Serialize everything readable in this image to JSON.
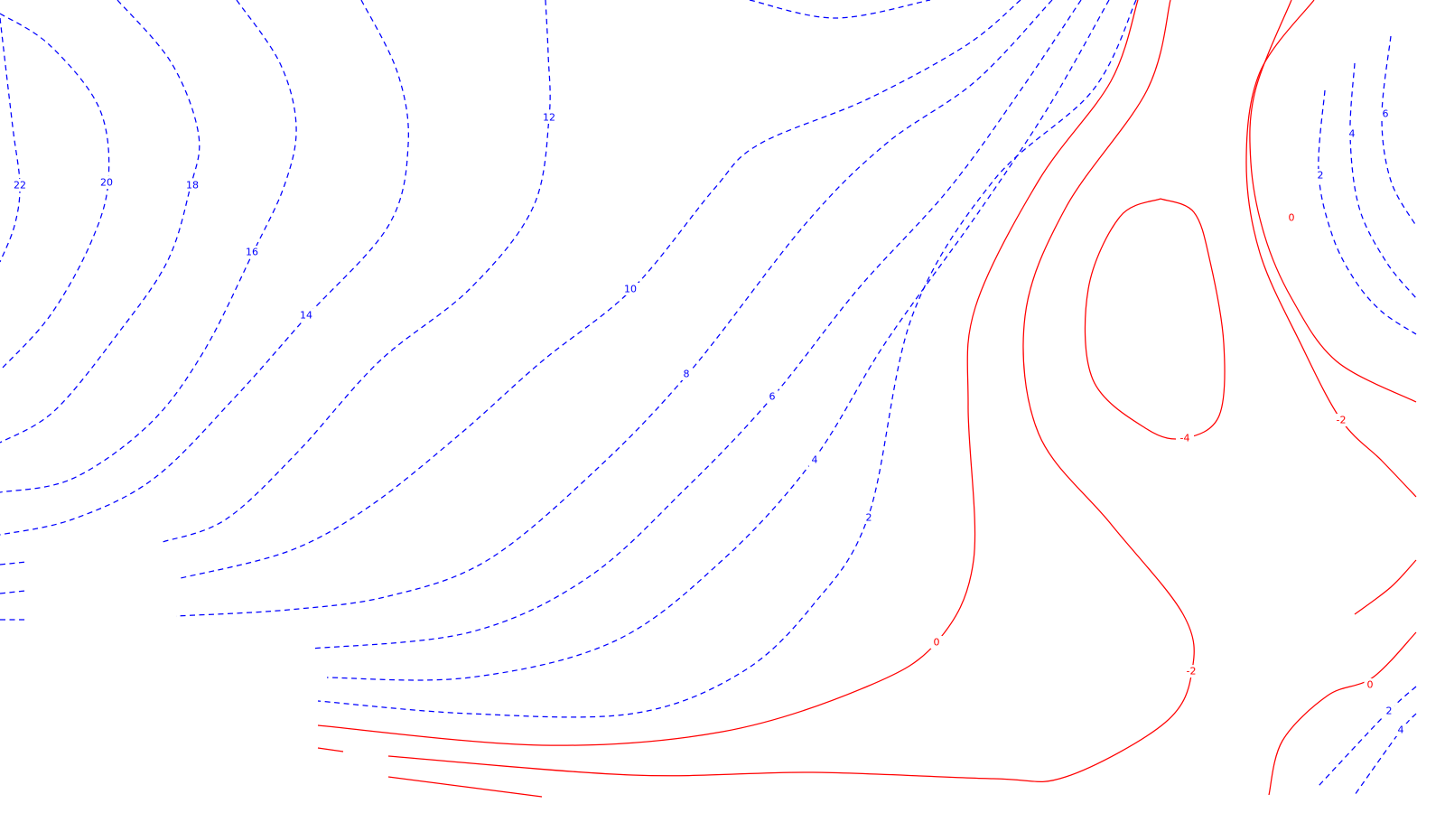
{
  "chart_data": {
    "type": "contour",
    "title": "",
    "xlabel": "",
    "ylabel": "",
    "grid": false,
    "legend": "none",
    "colors": {
      "positive": "#0000ff",
      "zero_and_negative": "#ff0000"
    },
    "line_styles": {
      "positive": "dashed",
      "zero_and_negative": "solid"
    },
    "levels": [
      22,
      20,
      18,
      16,
      14,
      12,
      10,
      8,
      6,
      4,
      2,
      0,
      -2,
      -4
    ],
    "labels": [
      "22",
      "20",
      "18",
      "16",
      "14",
      "12",
      "10",
      "8",
      "6",
      "4",
      "2",
      "0",
      "-2",
      "-4",
      "2",
      "4",
      "6",
      "0",
      "-2",
      "0",
      "2",
      "4"
    ]
  }
}
